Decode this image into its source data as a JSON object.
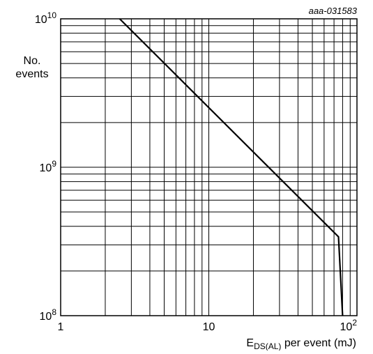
{
  "chart_data": {
    "type": "line",
    "reference": "aaa-031583",
    "title": "",
    "xscale": "log",
    "yscale": "log",
    "xlim": [
      1,
      100
    ],
    "ylim": [
      100000000,
      10000000000
    ],
    "grid": true,
    "ylabel_lines": [
      "No.",
      "events"
    ],
    "xlabel": {
      "main": "E",
      "subscript": "DS(AL)",
      "suffix": " per event (mJ)"
    },
    "xticks": [
      {
        "value": 1,
        "base": "1",
        "exp": ""
      },
      {
        "value": 10,
        "base": "10",
        "exp": ""
      },
      {
        "value": 100,
        "base": "10",
        "exp": "2"
      }
    ],
    "yticks": [
      {
        "value": 100000000,
        "base": "10",
        "exp": "8"
      },
      {
        "value": 1000000000,
        "base": "10",
        "exp": "9"
      },
      {
        "value": 10000000000,
        "base": "10",
        "exp": "10"
      }
    ],
    "series": [
      {
        "x": [
          2.5,
          75,
          75,
          80
        ],
        "y": [
          10000000000,
          340000000,
          340000000,
          100000000
        ],
        "color": "#000000"
      }
    ]
  }
}
